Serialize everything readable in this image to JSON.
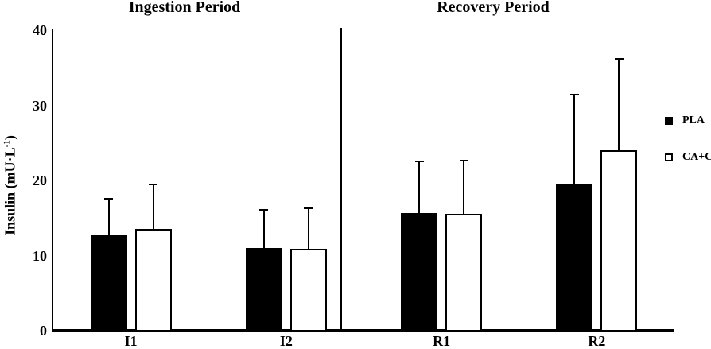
{
  "chart_data": {
    "type": "bar",
    "panels": [
      {
        "title": "Ingestion Period"
      },
      {
        "title": "Recovery Period"
      }
    ],
    "ylabel": {
      "prefix": "Insulin (mU·L",
      "sup": "-1",
      "suffix": ")"
    },
    "ylim": [
      0,
      40
    ],
    "yticks": [
      0,
      10,
      20,
      30,
      40
    ],
    "categories": [
      "I1",
      "I2",
      "R1",
      "R2"
    ],
    "category_panel": [
      0,
      0,
      1,
      1
    ],
    "series": [
      {
        "name": "PLA",
        "fill": "#000000",
        "values": [
          12.7,
          10.9,
          15.6,
          19.4
        ],
        "error_upper": [
          4.9,
          5.2,
          6.9,
          12.0
        ]
      },
      {
        "name": "CA+C",
        "fill": "#ffffff",
        "values": [
          13.4,
          10.8,
          15.4,
          23.9
        ],
        "error_upper": [
          6.1,
          5.5,
          7.2,
          12.3
        ]
      }
    ],
    "legend_position": "right",
    "grid": false,
    "background": "#ffffff",
    "axis_color": "#000000"
  }
}
